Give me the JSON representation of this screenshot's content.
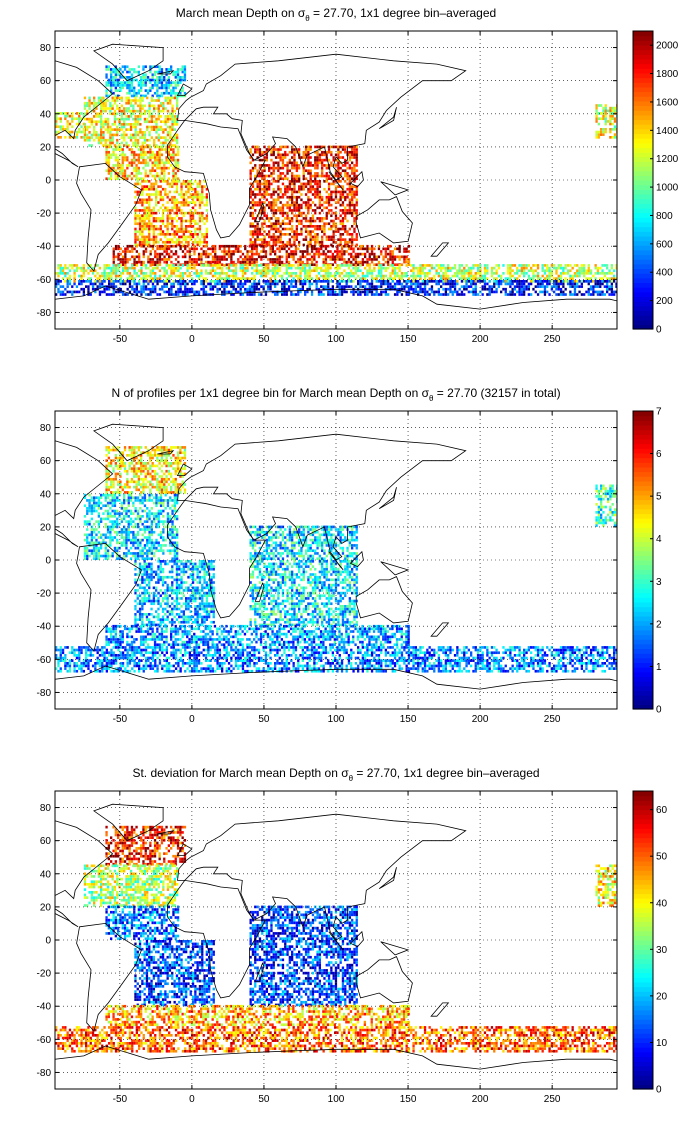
{
  "chart_data": [
    {
      "type": "heatmap",
      "title_before": "March mean Depth on σ",
      "title_sub": "θ",
      "title_after": " = 27.70, 1x1 degree bin–averaged",
      "xlim": [
        -95,
        295
      ],
      "ylim": [
        -90,
        90
      ],
      "xticks": [
        -50,
        0,
        50,
        100,
        150,
        200,
        250
      ],
      "yticks": [
        80,
        60,
        40,
        20,
        0,
        -20,
        -40,
        -60,
        -80
      ],
      "grid": true,
      "colorbar": {
        "min": 0,
        "max": 2100,
        "ticks": [
          0,
          200,
          400,
          600,
          800,
          1000,
          1200,
          1400,
          1600,
          1800,
          2000
        ],
        "placement": "right"
      },
      "regions": [
        {
          "lon": [
            -60,
            -5
          ],
          "lat": [
            50,
            68
          ],
          "value": 700
        },
        {
          "lon": [
            -75,
            -10
          ],
          "lat": [
            20,
            50
          ],
          "value": 1300
        },
        {
          "lon": [
            -60,
            -10
          ],
          "lat": [
            0,
            20
          ],
          "value": 1400
        },
        {
          "lon": [
            -40,
            10
          ],
          "lat": [
            -40,
            0
          ],
          "value": 1500
        },
        {
          "lon": [
            -55,
            25
          ],
          "lat": [
            -52,
            -40
          ],
          "value": 1850
        },
        {
          "lon": [
            40,
            115
          ],
          "lat": [
            -40,
            20
          ],
          "value": 1800
        },
        {
          "lon": [
            25,
            150
          ],
          "lat": [
            -52,
            -40
          ],
          "value": 1850
        },
        {
          "lon": [
            -95,
            295
          ],
          "lat": [
            -62,
            -52
          ],
          "value": 1200
        },
        {
          "lon": [
            -95,
            295
          ],
          "lat": [
            -70,
            -62
          ],
          "value": 300
        },
        {
          "lon": [
            -95,
            -75
          ],
          "lat": [
            25,
            40
          ],
          "value": 1300
        },
        {
          "lon": [
            280,
            295
          ],
          "lat": [
            25,
            45
          ],
          "value": 1250
        }
      ]
    },
    {
      "type": "heatmap",
      "title_before": "N of profiles per 1x1 degree bin for March mean Depth on σ",
      "title_sub": "θ",
      "title_after": " = 27.70 (32157 in total)",
      "xlim": [
        -95,
        295
      ],
      "ylim": [
        -90,
        90
      ],
      "xticks": [
        -50,
        0,
        50,
        100,
        150,
        200,
        250
      ],
      "yticks": [
        80,
        60,
        40,
        20,
        0,
        -20,
        -40,
        -60,
        -80
      ],
      "grid": true,
      "colorbar": {
        "min": 0,
        "max": 7,
        "ticks": [
          0,
          1,
          2,
          3,
          4,
          5,
          6,
          7
        ],
        "placement": "right"
      },
      "regions": [
        {
          "lon": [
            -60,
            -5
          ],
          "lat": [
            40,
            68
          ],
          "value": 4.5
        },
        {
          "lon": [
            -75,
            -10
          ],
          "lat": [
            0,
            40
          ],
          "value": 2.5
        },
        {
          "lon": [
            -40,
            15
          ],
          "lat": [
            -40,
            0
          ],
          "value": 2.2
        },
        {
          "lon": [
            40,
            115
          ],
          "lat": [
            -40,
            20
          ],
          "value": 2.5
        },
        {
          "lon": [
            -60,
            150
          ],
          "lat": [
            -52,
            -40
          ],
          "value": 2
        },
        {
          "lon": [
            -95,
            295
          ],
          "lat": [
            -68,
            -52
          ],
          "value": 1.8
        },
        {
          "lon": [
            280,
            295
          ],
          "lat": [
            20,
            45
          ],
          "value": 3
        }
      ]
    },
    {
      "type": "heatmap",
      "title_before": "St. deviation for March mean Depth on σ",
      "title_sub": "θ",
      "title_after": " = 27.70, 1x1 degree bin–averaged",
      "xlim": [
        -95,
        295
      ],
      "ylim": [
        -90,
        90
      ],
      "xticks": [
        -50,
        0,
        50,
        100,
        150,
        200,
        250
      ],
      "yticks": [
        80,
        60,
        40,
        20,
        0,
        -20,
        -40,
        -60,
        -80
      ],
      "grid": true,
      "colorbar": {
        "min": 0,
        "max": 64,
        "ticks": [
          0,
          10,
          20,
          30,
          40,
          50,
          60
        ],
        "placement": "right"
      },
      "regions": [
        {
          "lon": [
            -60,
            -5
          ],
          "lat": [
            45,
            68
          ],
          "value": 55
        },
        {
          "lon": [
            -75,
            -10
          ],
          "lat": [
            20,
            45
          ],
          "value": 35
        },
        {
          "lon": [
            -60,
            -10
          ],
          "lat": [
            0,
            20
          ],
          "value": 15
        },
        {
          "lon": [
            -40,
            15
          ],
          "lat": [
            -40,
            0
          ],
          "value": 12
        },
        {
          "lon": [
            40,
            115
          ],
          "lat": [
            -40,
            20
          ],
          "value": 12
        },
        {
          "lon": [
            -60,
            150
          ],
          "lat": [
            -52,
            -40
          ],
          "value": 45
        },
        {
          "lon": [
            -95,
            295
          ],
          "lat": [
            -68,
            -52
          ],
          "value": 50
        },
        {
          "lon": [
            280,
            295
          ],
          "lat": [
            20,
            45
          ],
          "value": 40
        }
      ]
    }
  ]
}
